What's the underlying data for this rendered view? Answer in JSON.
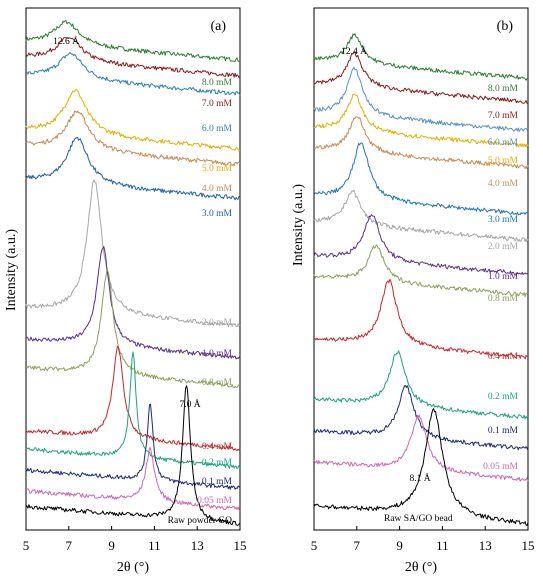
{
  "chart_data": [
    {
      "type": "line",
      "panel_label": "(a)",
      "xlabel": "2θ (°)",
      "ylabel": "Intensity (a.u.)",
      "xlim": [
        5,
        15
      ],
      "xticks": [
        "5",
        "7",
        "9",
        "11",
        "13",
        "15"
      ],
      "grid": false,
      "annotations": [
        {
          "text": "12.6 Å",
          "x": 6.9
        },
        {
          "text": "7.0 Å",
          "x": 12.5
        }
      ],
      "series": [
        {
          "name": "8.0 mM",
          "color": "#2e7d32",
          "baseline": 0.9,
          "peak_x": 6.9,
          "peak_h": 0.045,
          "width": 0.7
        },
        {
          "name": "7.0 mM",
          "color": "#8b1a1a",
          "baseline": 0.87,
          "peak_x": 7.0,
          "peak_h": 0.045,
          "width": 0.7
        },
        {
          "name": "6.0 mM",
          "color": "#2b7fb8",
          "baseline": 0.835,
          "peak_x": 7.1,
          "peak_h": 0.05,
          "width": 0.7
        },
        {
          "name": "5.0 mM",
          "color": "#e0b000",
          "baseline": 0.73,
          "peak_x": 7.3,
          "peak_h": 0.085,
          "width": 0.65
        },
        {
          "name": "4.0 mM",
          "color": "#c88a55",
          "baseline": 0.7,
          "peak_x": 7.4,
          "peak_h": 0.075,
          "width": 0.65
        },
        {
          "name": "3.0 mM",
          "color": "#1f5fa8",
          "baseline": 0.635,
          "peak_x": 7.4,
          "peak_h": 0.09,
          "width": 0.6
        },
        {
          "name": "2.0 mM",
          "color": "#a6a6a6",
          "baseline": 0.39,
          "peak_x": 8.2,
          "peak_h": 0.255,
          "width": 0.42
        },
        {
          "name": "1.0 mM",
          "color": "#5b2d8c",
          "baseline": 0.33,
          "peak_x": 8.6,
          "peak_h": 0.19,
          "width": 0.35
        },
        {
          "name": "0.8 mM",
          "color": "#8aa05a",
          "baseline": 0.275,
          "peak_x": 8.8,
          "peak_h": 0.2,
          "width": 0.33
        },
        {
          "name": "0.4 mM",
          "color": "#c62828",
          "baseline": 0.155,
          "peak_x": 9.3,
          "peak_h": 0.175,
          "width": 0.3
        },
        {
          "name": "0.2 mM",
          "color": "#1aa57a",
          "baseline": 0.12,
          "peak_x": 10.0,
          "peak_h": 0.2,
          "width": 0.18
        },
        {
          "name": "0.1 mM",
          "color": "#1a2a80",
          "baseline": 0.08,
          "peak_x": 10.8,
          "peak_h": 0.15,
          "width": 0.16
        },
        {
          "name": "0.05 mM",
          "color": "#cc66b3",
          "baseline": 0.04,
          "peak_x": 10.8,
          "peak_h": 0.1,
          "width": 0.25
        },
        {
          "name": "Raw powder GO",
          "color": "#000000",
          "baseline": 0.01,
          "peak_x": 12.5,
          "peak_h": 0.26,
          "width": 0.22
        }
      ]
    },
    {
      "type": "line",
      "panel_label": "(b)",
      "xlabel": "2θ (°)",
      "ylabel": "Intensity (a.u.)",
      "xlim": [
        5,
        15
      ],
      "xticks": [
        "5",
        "7",
        "9",
        "11",
        "13",
        "15"
      ],
      "grid": false,
      "annotations": [
        {
          "text": "12.4 Å",
          "x": 6.9
        },
        {
          "text": "8.1 Å",
          "x": 10.6
        }
      ],
      "series": [
        {
          "name": "8.0 mM",
          "color": "#2e7d32",
          "baseline": 0.865,
          "peak_x": 6.9,
          "peak_h": 0.055,
          "width": 0.45
        },
        {
          "name": "7.0 mM",
          "color": "#8b1a1a",
          "baseline": 0.82,
          "peak_x": 6.9,
          "peak_h": 0.065,
          "width": 0.45
        },
        {
          "name": "6.0 mM",
          "color": "#5b8fc9",
          "baseline": 0.765,
          "peak_x": 6.9,
          "peak_h": 0.09,
          "width": 0.45
        },
        {
          "name": "5.0 mM",
          "color": "#e0b000",
          "baseline": 0.735,
          "peak_x": 6.9,
          "peak_h": 0.07,
          "width": 0.45
        },
        {
          "name": "4.0 mM",
          "color": "#c88a55",
          "baseline": 0.695,
          "peak_x": 7.0,
          "peak_h": 0.07,
          "width": 0.45
        },
        {
          "name": "3.0 mM",
          "color": "#1f77b4",
          "baseline": 0.605,
          "peak_x": 7.2,
          "peak_h": 0.11,
          "width": 0.45
        },
        {
          "name": "2.0 mM",
          "color": "#a6a6a6",
          "baseline": 0.555,
          "peak_x": 6.8,
          "peak_h": 0.065,
          "width": 0.45
        },
        {
          "name": "1.0 mM",
          "color": "#5b2d8c",
          "baseline": 0.49,
          "peak_x": 7.7,
          "peak_h": 0.09,
          "width": 0.45
        },
        {
          "name": "0.8 mM",
          "color": "#8aa05a",
          "baseline": 0.45,
          "peak_x": 7.9,
          "peak_h": 0.07,
          "width": 0.45
        },
        {
          "name": "0.4 mM",
          "color": "#c62828",
          "baseline": 0.33,
          "peak_x": 8.5,
          "peak_h": 0.125,
          "width": 0.45
        },
        {
          "name": "0.2 mM",
          "color": "#1aa57a",
          "baseline": 0.215,
          "peak_x": 8.9,
          "peak_h": 0.105,
          "width": 0.45
        },
        {
          "name": "0.1 mM",
          "color": "#1a2a80",
          "baseline": 0.155,
          "peak_x": 9.3,
          "peak_h": 0.1,
          "width": 0.45
        },
        {
          "name": "0.05 mM",
          "color": "#cc66b3",
          "baseline": 0.095,
          "peak_x": 9.9,
          "peak_h": 0.105,
          "width": 0.45
        },
        {
          "name": "Raw SA/GO bead",
          "color": "#000000",
          "baseline": 0.01,
          "peak_x": 10.6,
          "peak_h": 0.205,
          "width": 0.5
        }
      ]
    }
  ]
}
